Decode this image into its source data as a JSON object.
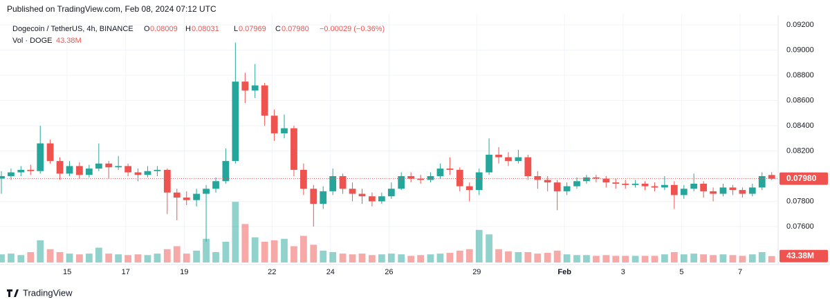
{
  "header": {
    "published": "Published on TradingView.com, Feb 08, 2024 07:12 UTC"
  },
  "footer": {
    "brand": "TradingView"
  },
  "chart_data": {
    "type": "candlestick",
    "title": "Dogecoin / TetherUS, 4h, BINANCE",
    "legend": {
      "o_label": "O",
      "o": "0.08009",
      "h_label": "H",
      "h": "0.08031",
      "l_label": "L",
      "l": "0.07969",
      "c_label": "C",
      "c": "0.07980",
      "change": "−0.00029 (−0.36%)",
      "vol_label": "Vol · DOGE",
      "vol": "43.38M"
    },
    "last_price_label": "0.07980",
    "last_volume_label": "43.38M",
    "up_color": "#26a69a",
    "down_color": "#ef5350",
    "grid": true,
    "xlim": [
      12.94,
      39.3
    ],
    "xticks": [
      15,
      17,
      19,
      22,
      24,
      26,
      29,
      {
        "value": 32,
        "label": "Feb"
      },
      {
        "value": 34,
        "label": "3"
      },
      {
        "value": 36,
        "label": "5"
      },
      {
        "value": 38,
        "label": "7"
      }
    ],
    "ylim": [
      0.07315,
      0.09288
    ],
    "yticks": [
      {
        "value": 0.076,
        "label": "0.07600"
      },
      {
        "value": 0.078,
        "label": "0.07800"
      },
      {
        "value": 0.08,
        "label": "0.08000"
      },
      {
        "value": 0.082,
        "label": "0.08200"
      },
      {
        "value": 0.084,
        "label": "0.08400"
      },
      {
        "value": 0.086,
        "label": "0.08600"
      },
      {
        "value": 0.088,
        "label": "0.08800"
      },
      {
        "value": 0.09,
        "label": "0.09000"
      },
      {
        "value": 0.092,
        "label": "0.09200"
      }
    ],
    "vlim": [
      0,
      700
    ],
    "x": [
      12.75,
      13.08,
      13.42,
      13.75,
      14.08,
      14.42,
      14.75,
      15.08,
      15.42,
      15.75,
      16.08,
      16.42,
      16.75,
      17.08,
      17.42,
      17.75,
      18.08,
      18.42,
      18.75,
      19.08,
      19.42,
      19.75,
      20.08,
      20.42,
      20.75,
      21.08,
      21.42,
      21.75,
      22.08,
      22.42,
      22.75,
      23.08,
      23.42,
      23.75,
      24.08,
      24.42,
      24.75,
      25.08,
      25.42,
      25.75,
      26.08,
      26.42,
      26.75,
      27.08,
      27.42,
      27.75,
      28.08,
      28.42,
      28.75,
      29.08,
      29.42,
      29.75,
      30.08,
      30.42,
      30.75,
      31.08,
      31.42,
      31.75,
      32.08,
      32.42,
      32.75,
      33.08,
      33.42,
      33.75,
      34.08,
      34.42,
      34.75,
      35.08,
      35.42,
      35.75,
      36.08,
      36.42,
      36.75,
      37.08,
      37.42,
      37.75,
      38.08,
      38.42,
      38.75,
      39.08
    ],
    "open": [
      0.0798,
      0.08,
      0.0803,
      0.0805,
      0.0804,
      0.0826,
      0.0812,
      0.0802,
      0.0808,
      0.0801,
      0.0806,
      0.081,
      0.0807,
      0.0808,
      0.0803,
      0.0801,
      0.0804,
      0.0805,
      0.0787,
      0.0783,
      0.0781,
      0.0786,
      0.079,
      0.0796,
      0.0812,
      0.0875,
      0.0868,
      0.0872,
      0.0848,
      0.0834,
      0.0838,
      0.0805,
      0.079,
      0.0778,
      0.0788,
      0.08,
      0.079,
      0.0786,
      0.0784,
      0.078,
      0.0784,
      0.079,
      0.08,
      0.0798,
      0.0797,
      0.08,
      0.0806,
      0.0805,
      0.0792,
      0.0789,
      0.0803,
      0.0817,
      0.0815,
      0.0812,
      0.0815,
      0.08,
      0.0797,
      0.0795,
      0.0788,
      0.0792,
      0.0796,
      0.0799,
      0.0798,
      0.0795,
      0.0794,
      0.0793,
      0.0794,
      0.0792,
      0.0791,
      0.0793,
      0.0785,
      0.079,
      0.0794,
      0.0788,
      0.0786,
      0.0791,
      0.0789,
      0.0786,
      0.0791,
      0.08009
    ],
    "high": [
      0.0804,
      0.0806,
      0.0808,
      0.0809,
      0.084,
      0.0829,
      0.0815,
      0.0812,
      0.0811,
      0.0809,
      0.0826,
      0.0812,
      0.0816,
      0.081,
      0.0806,
      0.0808,
      0.0808,
      0.0806,
      0.079,
      0.0788,
      0.079,
      0.0793,
      0.0799,
      0.0822,
      0.0906,
      0.0882,
      0.0889,
      0.0874,
      0.0853,
      0.0849,
      0.084,
      0.081,
      0.0793,
      0.0792,
      0.0806,
      0.0802,
      0.0795,
      0.079,
      0.0787,
      0.0787,
      0.0795,
      0.0803,
      0.0803,
      0.0801,
      0.0803,
      0.081,
      0.0815,
      0.0807,
      0.0795,
      0.0806,
      0.083,
      0.0823,
      0.0819,
      0.0821,
      0.0817,
      0.0804,
      0.08,
      0.0797,
      0.0795,
      0.0799,
      0.0801,
      0.0801,
      0.08,
      0.0798,
      0.0797,
      0.0797,
      0.0796,
      0.0795,
      0.08,
      0.0796,
      0.0793,
      0.0802,
      0.0796,
      0.0791,
      0.0794,
      0.0793,
      0.0791,
      0.0794,
      0.0803,
      0.08031
    ],
    "low": [
      0.0786,
      0.0797,
      0.08,
      0.0801,
      0.0802,
      0.081,
      0.0797,
      0.08,
      0.0798,
      0.0799,
      0.0804,
      0.0798,
      0.0805,
      0.08,
      0.0796,
      0.0799,
      0.08,
      0.077,
      0.0765,
      0.0777,
      0.0776,
      0.0748,
      0.0787,
      0.0794,
      0.081,
      0.0858,
      0.0862,
      0.084,
      0.0828,
      0.083,
      0.08,
      0.0785,
      0.076,
      0.0774,
      0.0785,
      0.0786,
      0.078,
      0.0778,
      0.0776,
      0.0778,
      0.0782,
      0.0789,
      0.0795,
      0.0794,
      0.0795,
      0.0798,
      0.0801,
      0.0788,
      0.078,
      0.0785,
      0.0801,
      0.081,
      0.0808,
      0.081,
      0.0797,
      0.079,
      0.0788,
      0.0773,
      0.0785,
      0.079,
      0.0794,
      0.0795,
      0.0791,
      0.079,
      0.079,
      0.0791,
      0.0789,
      0.0788,
      0.0789,
      0.0774,
      0.0782,
      0.0788,
      0.0783,
      0.078,
      0.0784,
      0.0785,
      0.0783,
      0.0784,
      0.0789,
      0.07969
    ],
    "close": [
      0.08,
      0.0803,
      0.0805,
      0.0804,
      0.0826,
      0.0812,
      0.0802,
      0.0808,
      0.0801,
      0.0806,
      0.081,
      0.0807,
      0.0808,
      0.0803,
      0.0801,
      0.0804,
      0.0805,
      0.0787,
      0.0783,
      0.0781,
      0.0786,
      0.079,
      0.0796,
      0.0812,
      0.0875,
      0.0868,
      0.0872,
      0.0848,
      0.0834,
      0.0838,
      0.0805,
      0.079,
      0.0778,
      0.0788,
      0.08,
      0.079,
      0.0786,
      0.0784,
      0.078,
      0.0784,
      0.079,
      0.08,
      0.0798,
      0.0797,
      0.08,
      0.0806,
      0.0805,
      0.0792,
      0.0789,
      0.0803,
      0.0817,
      0.0815,
      0.0812,
      0.0815,
      0.08,
      0.0797,
      0.0795,
      0.0788,
      0.0792,
      0.0796,
      0.0799,
      0.0798,
      0.0795,
      0.0794,
      0.0793,
      0.0794,
      0.0792,
      0.0791,
      0.0793,
      0.0785,
      0.079,
      0.0794,
      0.0788,
      0.0786,
      0.0791,
      0.0789,
      0.0786,
      0.0791,
      0.08,
      0.0798
    ],
    "volume": [
      55,
      60,
      50,
      70,
      150,
      90,
      70,
      60,
      55,
      60,
      100,
      60,
      55,
      50,
      55,
      50,
      60,
      90,
      110,
      60,
      80,
      160,
      70,
      140,
      410,
      260,
      170,
      140,
      150,
      160,
      110,
      180,
      120,
      80,
      70,
      60,
      55,
      60,
      50,
      55,
      60,
      55,
      45,
      50,
      55,
      60,
      65,
      80,
      90,
      220,
      190,
      90,
      75,
      70,
      70,
      60,
      65,
      80,
      55,
      50,
      50,
      45,
      50,
      45,
      45,
      45,
      45,
      45,
      55,
      70,
      55,
      60,
      55,
      50,
      55,
      50,
      45,
      55,
      70,
      43.38
    ]
  }
}
